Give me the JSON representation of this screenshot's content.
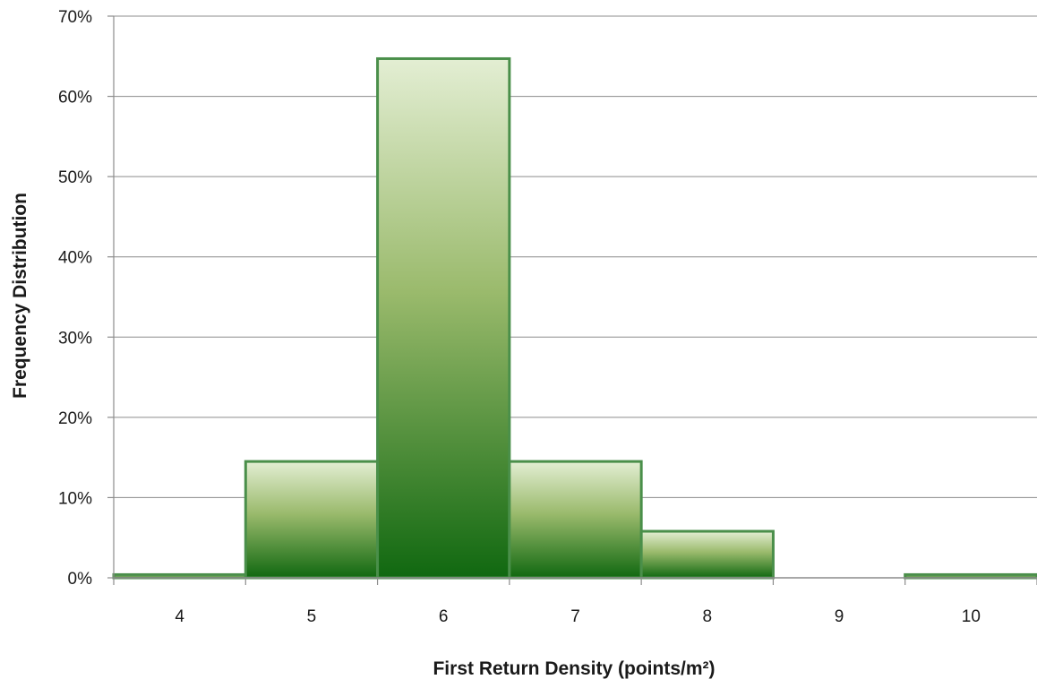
{
  "chart_data": {
    "type": "bar",
    "categories": [
      "4",
      "5",
      "6",
      "7",
      "8",
      "9",
      "10"
    ],
    "values": [
      0.4,
      14.5,
      64.7,
      14.5,
      5.8,
      0,
      0.4
    ],
    "value_unit": "%",
    "title": "",
    "xlabel": "First Return Density (points/m²)",
    "ylabel": "Frequency Distribution",
    "ylim": [
      0,
      70
    ],
    "yticks": [
      0,
      10,
      20,
      30,
      40,
      50,
      60,
      70
    ],
    "ytick_labels": [
      "0%",
      "10%",
      "20%",
      "30%",
      "40%",
      "50%",
      "60%",
      "70%"
    ],
    "grid": true,
    "legend": "none",
    "colors": {
      "bar_top": "#e3eed3",
      "bar_mid": "#9aba6c",
      "bar_bottom": "#106810",
      "bar_edge": "#4a8f4a",
      "grid": "#8c8c8c",
      "axis": "#8c8c8c"
    }
  }
}
